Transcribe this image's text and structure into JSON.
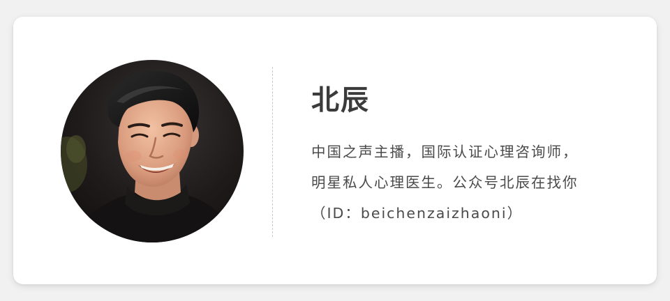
{
  "profile": {
    "name": "北辰",
    "bio_lines": [
      "中国之声主播，国际认证心理咨询师，",
      "明星私人心理医生。公众号北辰在找你",
      "（ID：beichenzaizhaoni）"
    ]
  },
  "colors": {
    "page_background": "#f1f1f1",
    "card_background": "#ffffff",
    "name_text": "#3b3b3b",
    "bio_text": "#4a4a4a",
    "divider": "#c8c8c8"
  }
}
